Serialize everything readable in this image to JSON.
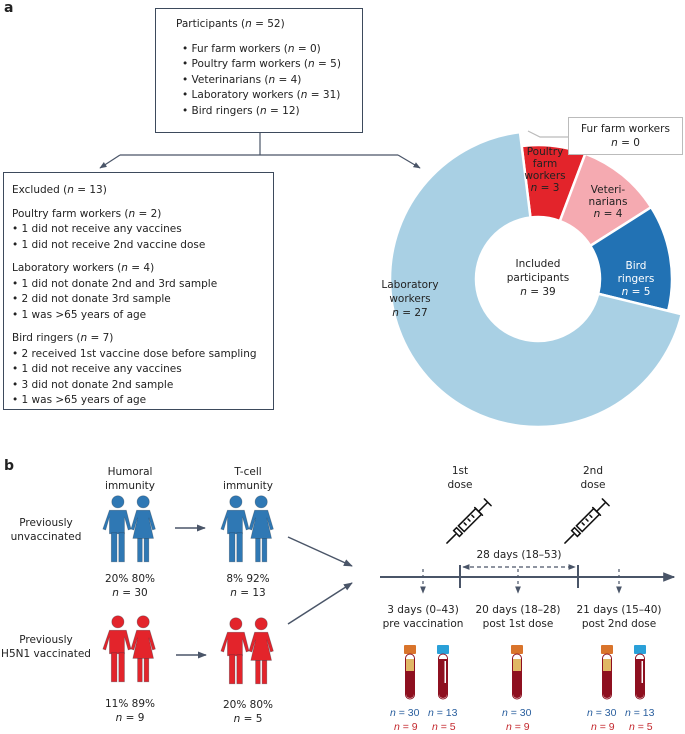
{
  "panel_a": {
    "label": "a",
    "participants_box": {
      "title": "Participants (n = 52)",
      "items": [
        "• Fur farm workers (n = 0)",
        "• Poultry farm workers (n = 5)",
        "• Veterinarians (n = 4)",
        "• Laboratory workers (n = 31)",
        "• Bird ringers (n = 12)"
      ]
    },
    "excluded_box": {
      "title": "Excluded (n = 13)",
      "groups": [
        {
          "title": "Poultry farm workers (n = 2)",
          "items": [
            "• 1 did not receive any vaccines",
            "• 1 did not receive 2nd vaccine dose"
          ]
        },
        {
          "title": "Laboratory workers (n = 4)",
          "items": [
            "• 1 did not donate 2nd and 3rd sample",
            "• 2 did not donate 3rd sample",
            "• 1 was >65 years of age"
          ]
        },
        {
          "title": "Bird ringers (n = 7)",
          "items": [
            "• 2 received 1st vaccine dose before sampling",
            "• 1 did not receive any vaccines",
            "• 3 did not donate 2nd sample",
            "• 1 was >65 years of age"
          ]
        }
      ]
    },
    "donut": {
      "center_label": [
        "Included",
        "participants",
        "n = 39"
      ],
      "callout": [
        "Fur farm workers",
        "n = 0"
      ],
      "segments": [
        {
          "label": [
            "Poultry",
            "farm",
            "workers",
            "n = 3"
          ],
          "n": 3,
          "color": "#e3242b"
        },
        {
          "label": [
            "Veteri-",
            "narians",
            "n = 4"
          ],
          "n": 4,
          "color": "#f5aab1"
        },
        {
          "label": [
            "Bird",
            "ringers",
            "n = 5"
          ],
          "n": 5,
          "color": "#2272b4"
        },
        {
          "label": [
            "Laboratory",
            "workers",
            "n = 27"
          ],
          "n": 27,
          "color": "#a9d0e4"
        }
      ]
    }
  },
  "panel_b": {
    "label": "b",
    "columns": [
      "Humoral immunity",
      "T-cell immunity"
    ],
    "rows": [
      {
        "label": [
          "Previously",
          "unvaccinated"
        ],
        "color": "#2f78b4",
        "humoral": [
          "20% 80%",
          "n = 30"
        ],
        "tcell": [
          "8% 92%",
          "n = 13"
        ]
      },
      {
        "label": [
          "Previously",
          "H5N1 vaccinated"
        ],
        "color": "#e3242b",
        "humoral": [
          "11% 89%",
          "n = 9"
        ],
        "tcell": [
          "20% 80%",
          "n = 5"
        ]
      }
    ],
    "doses": [
      [
        "1st",
        "dose"
      ],
      [
        "2nd",
        "dose"
      ]
    ],
    "interval": "28 days (18–53)",
    "timepoints": [
      {
        "label": [
          "3 days (0–43)",
          "pre vaccination"
        ],
        "blue_n": [
          "n = 30",
          "n = 13"
        ],
        "red_n": [
          "n = 9",
          "n = 5"
        ]
      },
      {
        "label": [
          "20 days (18–28)",
          "post 1st dose"
        ],
        "blue_n": [
          "n = 30"
        ],
        "red_n": [
          "n = 9"
        ]
      },
      {
        "label": [
          "21 days (15–40)",
          "post 2nd dose"
        ],
        "blue_n": [
          "n = 30",
          "n = 13"
        ],
        "red_n": [
          "n = 9",
          "n = 5"
        ]
      }
    ],
    "colors": {
      "line": "#4a5568",
      "tube_blood": "#8e1020",
      "tube_serum": "#e0b765",
      "cap_orange": "#d9742b",
      "cap_blue": "#2aa0d8"
    }
  }
}
